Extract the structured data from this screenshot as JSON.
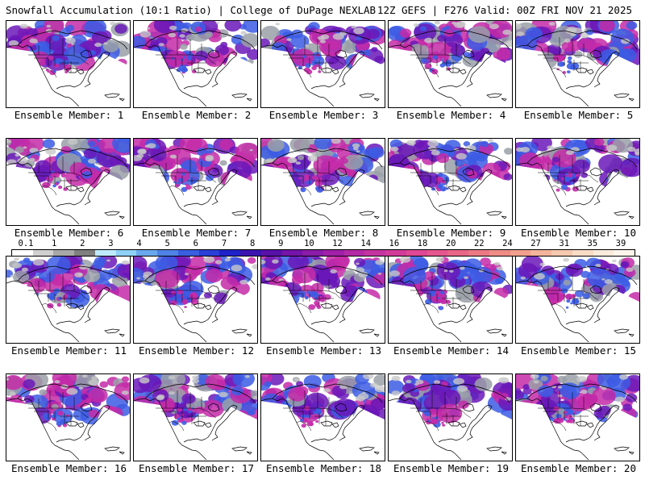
{
  "header": {
    "left": "Snowfall Accumulation (10:1 Ratio) | College of DuPage NEXLAB",
    "right": "12Z GEFS | F276 Valid: 00Z FRI NOV 21 2025"
  },
  "panels": [
    {
      "label": "Ensemble Member: 1"
    },
    {
      "label": "Ensemble Member: 2"
    },
    {
      "label": "Ensemble Member: 3"
    },
    {
      "label": "Ensemble Member: 4"
    },
    {
      "label": "Ensemble Member: 5"
    },
    {
      "label": "Ensemble Member: 6"
    },
    {
      "label": "Ensemble Member: 7"
    },
    {
      "label": "Ensemble Member: 8"
    },
    {
      "label": "Ensemble Member: 9"
    },
    {
      "label": "Ensemble Member: 10"
    },
    {
      "label": "Ensemble Member: 11"
    },
    {
      "label": "Ensemble Member: 12"
    },
    {
      "label": "Ensemble Member: 13"
    },
    {
      "label": "Ensemble Member: 14"
    },
    {
      "label": "Ensemble Member: 15"
    },
    {
      "label": "Ensemble Member: 16"
    },
    {
      "label": "Ensemble Member: 17"
    },
    {
      "label": "Ensemble Member: 18"
    },
    {
      "label": "Ensemble Member: 19"
    },
    {
      "label": "Ensemble Member: 20"
    }
  ],
  "legend": {
    "labels": [
      "0.1",
      "1",
      "2",
      "3",
      "4",
      "5",
      "6",
      "7",
      "8",
      "9",
      "10",
      "12",
      "14",
      "16",
      "18",
      "20",
      "22",
      "24",
      "27",
      "31",
      "35",
      "39"
    ],
    "colors": [
      "#ffffff",
      "#d0d0d0",
      "#a8a8a8",
      "#808080",
      "#bfe9ff",
      "#8fd0f8",
      "#6aa8ee",
      "#4f82e6",
      "#3a5ee0",
      "#2a3ed8",
      "#1f22c8",
      "#3b14b0",
      "#5810a8",
      "#7414a8",
      "#8a1ca8",
      "#a020a8",
      "#b42aa6",
      "#c434a0",
      "#d23c9a",
      "#de4894",
      "#e4568e",
      "#e86688",
      "#ec7884",
      "#ef8c86",
      "#f2a08e",
      "#f4b49c",
      "#f7c8b0",
      "#f9dcc6",
      "#fbebdc",
      "#fdf5ec"
    ]
  },
  "colors": {
    "heavy": "#c42aa8",
    "medium": "#6a18b8",
    "light": "#3c5ce4",
    "trace": "#9aa0a8",
    "coast": "#000000",
    "background": "#ffffff"
  }
}
